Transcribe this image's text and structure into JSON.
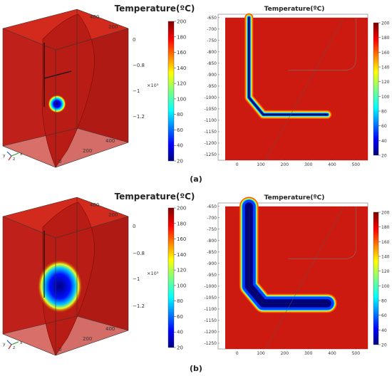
{
  "chart_data": [
    {
      "type": "3d-volume",
      "panel": "a",
      "title": "Temperature(ºC)",
      "colorbar": {
        "min": 20,
        "max": 200,
        "ticks": [
          20,
          40,
          60,
          80,
          100,
          120,
          140,
          160,
          180,
          200
        ]
      },
      "axis_ticks": {
        "depth": [
          "0",
          "−0.8",
          "−1",
          "−1.2"
        ],
        "depth_unit": "×10³",
        "horizontal": [
          "0",
          "200",
          "400"
        ],
        "top": [
          "200",
          "400"
        ]
      },
      "triad": [
        "y",
        "z",
        "x"
      ]
    },
    {
      "type": "heatmap",
      "panel": "a",
      "title": "Temperature(ºC)",
      "x_ticks": [
        0,
        100,
        200,
        300,
        400,
        500
      ],
      "y_ticks": [
        -650,
        -700,
        -750,
        -800,
        -850,
        -900,
        -950,
        -1000,
        -1050,
        -1100,
        -1150,
        -1200,
        -1250
      ],
      "xlim": [
        -80,
        550
      ],
      "ylim": [
        -1275,
        -635
      ],
      "well_profile": [
        [
          50,
          -650
        ],
        [
          50,
          -1000
        ],
        [
          110,
          -1075
        ],
        [
          380,
          -1075
        ]
      ],
      "heat_halo": 6,
      "fracture": [
        [
          120,
          -1275
        ],
        [
          450,
          -650
        ]
      ],
      "reference_line": [
        [
          215,
          -880
        ],
        [
          450,
          -880
        ],
        [
          500,
          -835
        ],
        [
          500,
          -650
        ]
      ],
      "colorbar": {
        "min": 20,
        "max": 200,
        "ticks": [
          20,
          40,
          60,
          80,
          100,
          120,
          140,
          160,
          180,
          200
        ]
      }
    },
    {
      "type": "3d-volume",
      "panel": "b",
      "title": "Temperature(ºC)",
      "colorbar": {
        "min": 20,
        "max": 200,
        "ticks": [
          20,
          40,
          60,
          80,
          100,
          120,
          140,
          160,
          180,
          200
        ]
      },
      "axis_ticks": {
        "depth": [
          "0",
          "−0.8",
          "−1",
          "−1.2"
        ],
        "depth_unit": "×10³",
        "horizontal": [
          "0",
          "200",
          "400"
        ],
        "top": [
          "200",
          "400"
        ]
      },
      "triad": [
        "y",
        "z",
        "x"
      ]
    },
    {
      "type": "heatmap",
      "panel": "b",
      "title": "Temperature(ºC)",
      "x_ticks": [
        0,
        100,
        200,
        300,
        400,
        500
      ],
      "y_ticks": [
        -650,
        -700,
        -750,
        -800,
        -850,
        -900,
        -950,
        -1000,
        -1050,
        -1100,
        -1150,
        -1200,
        -1250
      ],
      "xlim": [
        -80,
        550
      ],
      "ylim": [
        -1275,
        -635
      ],
      "well_profile": [
        [
          50,
          -650
        ],
        [
          50,
          -1000
        ],
        [
          110,
          -1075
        ],
        [
          380,
          -1075
        ]
      ],
      "heat_halo": 28,
      "fracture": [
        [
          120,
          -1275
        ],
        [
          450,
          -650
        ]
      ],
      "reference_line": [
        [
          215,
          -880
        ],
        [
          450,
          -880
        ],
        [
          500,
          -835
        ],
        [
          500,
          -650
        ]
      ],
      "colorbar": {
        "min": 20,
        "max": 200,
        "ticks": [
          20,
          40,
          60,
          80,
          100,
          120,
          140,
          160,
          180,
          200
        ]
      }
    }
  ],
  "captions": {
    "a": "(a)",
    "b": "(b)"
  }
}
